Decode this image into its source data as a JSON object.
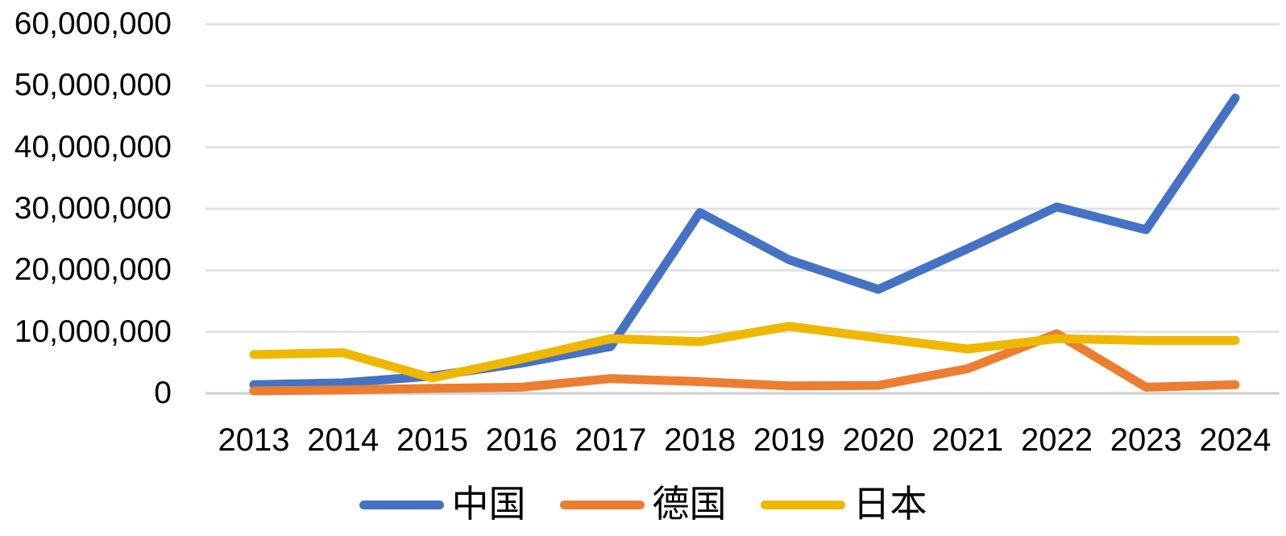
{
  "chart_data": {
    "type": "line",
    "title": "",
    "xlabel": "",
    "ylabel": "",
    "categories": [
      "2013",
      "2014",
      "2015",
      "2016",
      "2017",
      "2018",
      "2019",
      "2020",
      "2021",
      "2022",
      "2023",
      "2024"
    ],
    "series": [
      {
        "name": "中国",
        "color": "#4472C4",
        "values": [
          1400000,
          1700000,
          2800000,
          4900000,
          7600000,
          29400000,
          21700000,
          16900000,
          23500000,
          30300000,
          26600000,
          48000000
        ]
      },
      {
        "name": "德国",
        "color": "#ED7D31",
        "values": [
          400000,
          550000,
          800000,
          1000000,
          2400000,
          1900000,
          1200000,
          1300000,
          4000000,
          9700000,
          1000000,
          1400000
        ]
      },
      {
        "name": "日本",
        "color": "#EFB800",
        "values": [
          6300000,
          6600000,
          2500000,
          5600000,
          8900000,
          8400000,
          10900000,
          9000000,
          7200000,
          8900000,
          8600000,
          8600000
        ]
      }
    ],
    "ylim": [
      0,
      60000000
    ],
    "y_tick_interval": 10000000,
    "y_tick_labels": [
      "0",
      "10,000,000",
      "20,000,000",
      "30,000,000",
      "40,000,000",
      "50,000,000",
      "60,000,000"
    ],
    "grid": "horizontal",
    "gridline_color": "#E2E2E2",
    "axis_line_color": "#D2D2D2",
    "legend_position": "bottom",
    "text_color": "#000000",
    "background_color": "#FFFFFF"
  }
}
